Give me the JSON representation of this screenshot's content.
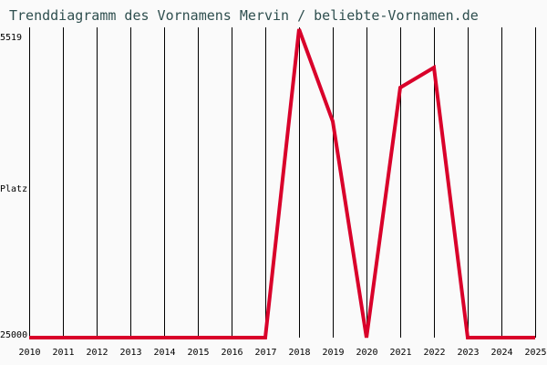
{
  "title": "Trenddiagramm des Vornamens Mervin / beliebte-Vornamen.de",
  "y_axis": {
    "top_label": "5519",
    "mid_label": "Platz",
    "bottom_label": "25000"
  },
  "colors": {
    "line": "#d9002a",
    "grid": "#000000",
    "title": "#2f4f4f",
    "background": "#fafafa"
  },
  "chart_data": {
    "type": "line",
    "title": "Trenddiagramm des Vornamens Mervin / beliebte-Vornamen.de",
    "xlabel": "",
    "ylabel": "Platz",
    "ylim": [
      25000,
      5519
    ],
    "y_inverted": true,
    "grid": "vertical",
    "categories": [
      "2010",
      "2011",
      "2012",
      "2013",
      "2014",
      "2015",
      "2016",
      "2017",
      "2018",
      "2019",
      "2020",
      "2021",
      "2022",
      "2023",
      "2024",
      "2025"
    ],
    "series": [
      {
        "name": "Mervin",
        "values": [
          25000,
          25000,
          25000,
          25000,
          25000,
          25000,
          25000,
          25000,
          5519,
          11340,
          25000,
          9208,
          7940,
          25000,
          25000,
          25000
        ]
      }
    ]
  }
}
